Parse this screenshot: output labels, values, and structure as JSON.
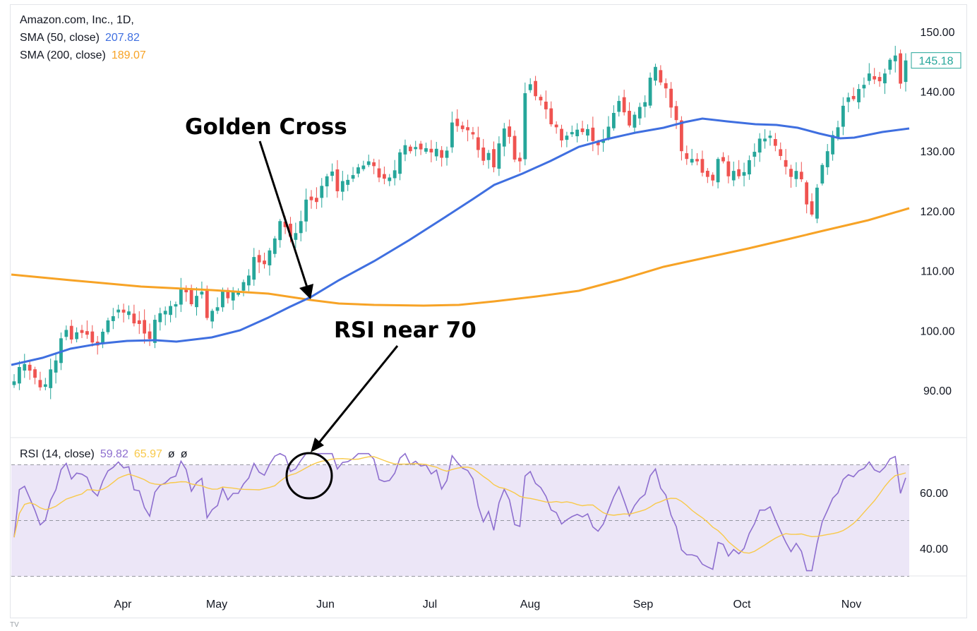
{
  "legend": {
    "title": "Amazon.com, Inc., 1D,",
    "sma50_label": "SMA (50, close)",
    "sma50_value": "207.82",
    "sma200_label": "SMA (200, close)",
    "sma200_value": "189.07",
    "rsi_label": "RSI (14, close)",
    "rsi_value": "59.82",
    "rsi_ma_value": "65.97",
    "rsi_extra1": "ø",
    "rsi_extra2": "ø"
  },
  "annotations": {
    "golden_cross": "Golden Cross",
    "rsi_near": "RSI near 70"
  },
  "footnote": "TV",
  "colors": {
    "up": "#26a69a",
    "down": "#ef5350",
    "sma50": "#3f6fe0",
    "sma200": "#f7a326",
    "rsi": "#8e6fcf",
    "rsi_ma": "#f8c94a",
    "rsi_band": "#ece6f7",
    "price_tag": "#26a69a"
  },
  "chart_data": [
    {
      "type": "candlestick",
      "title": "Amazon.com, Inc., 1D,",
      "x_ticks": [
        "Apr",
        "May",
        "Jun",
        "Jul",
        "Aug",
        "Sep",
        "Oct",
        "Nov"
      ],
      "y_ticks": [
        "90.00",
        "100.00",
        "110.00",
        "120.00",
        "130.00",
        "140.00",
        "150.00"
      ],
      "ylim": [
        83.5,
        153
      ],
      "last_price": "145.18",
      "close": [
        91.5,
        93.9,
        94.4,
        93.3,
        92.1,
        90.5,
        91.0,
        93.5,
        95.0,
        98.7,
        100.1,
        98.5,
        99.7,
        99.6,
        99.3,
        98.0,
        97.5,
        99.8,
        101.7,
        102.4,
        103.5,
        103.0,
        103.2,
        101.2,
        101.1,
        99.5,
        98.6,
        101.8,
        102.9,
        103.3,
        104.1,
        104.4,
        107.1,
        106.4,
        104.4,
        105.8,
        106.5,
        102.1,
        103.3,
        103.9,
        106.8,
        105.4,
        106.5,
        106.5,
        108.1,
        109.2,
        112.3,
        111.4,
        111.1,
        113.4,
        115.4,
        118.3,
        117.3,
        115.7,
        116.3,
        118.3,
        121.9,
        121.8,
        121.5,
        124.2,
        125.8,
        126.6,
        123.3,
        125.0,
        125.2,
        126.0,
        127.3,
        127.6,
        128.3,
        127.5,
        125.6,
        125.4,
        125.6,
        126.8,
        129.8,
        131.0,
        130.0,
        130.7,
        130.3,
        130.5,
        129.8,
        130.4,
        128.9,
        130.1,
        134.8,
        134.2,
        133.7,
        133.5,
        132.8,
        130.2,
        128.4,
        129.7,
        127.3,
        131.3,
        133.8,
        132.4,
        128.6,
        128.3,
        139.7,
        141.2,
        139.2,
        138.5,
        137.0,
        134.5,
        134.0,
        131.8,
        132.6,
        133.2,
        133.6,
        133.2,
        133.7,
        131.7,
        131.0,
        132.0,
        134.1,
        136.4,
        138.4,
        136.5,
        134.3,
        136.1,
        137.4,
        138.2,
        142.3,
        144.1,
        141.5,
        140.5,
        137.3,
        135.2,
        130.0,
        128.7,
        128.7,
        128.3,
        126.4,
        125.7,
        125.1,
        128.7,
        128.3,
        125.8,
        126.7,
        125.8,
        126.5,
        128.5,
        129.9,
        132.1,
        132.1,
        132.6,
        130.9,
        129.2,
        127.4,
        125.7,
        126.7,
        125.3,
        121.1,
        119.4,
        123.9,
        127.7,
        130.0,
        132.7,
        134.0,
        137.6,
        139.0,
        138.7,
        140.4,
        141.1,
        143.0,
        142.0,
        141.7,
        143.0,
        145.3,
        146.0,
        141.3,
        145.18
      ],
      "ohlc_note": "Daily candles, green = close above open, red = close below open",
      "series": [
        {
          "name": "SMA (50, close)",
          "color": "#3f6fe0"
        },
        {
          "name": "SMA (200, close)",
          "color": "#f7a326"
        }
      ]
    },
    {
      "type": "line",
      "title": "RSI (14, close)",
      "y_ticks": [
        "40.00",
        "60.00"
      ],
      "ylim": [
        28,
        73
      ],
      "bands": [
        30,
        50,
        70
      ],
      "series": [
        {
          "name": "RSI (14, close)",
          "color": "#8e6fcf"
        },
        {
          "name": "RSI-based MA",
          "color": "#f8c94a"
        }
      ]
    }
  ]
}
